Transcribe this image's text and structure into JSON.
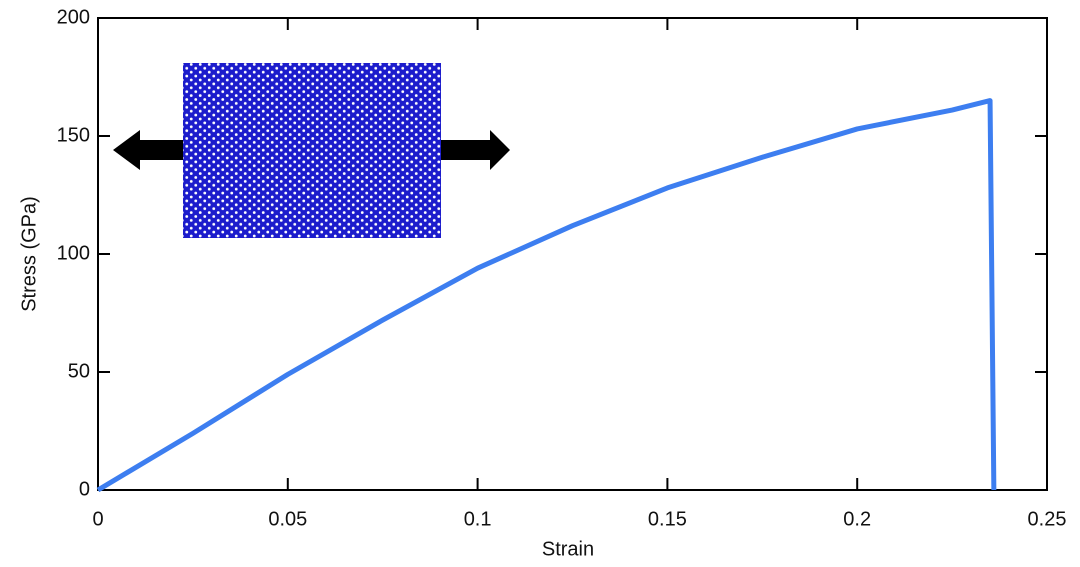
{
  "chart_data": {
    "type": "line",
    "x_label": "Strain",
    "y_label": "Stress (GPa)",
    "x": [
      0,
      0.025,
      0.05,
      0.075,
      0.1,
      0.125,
      0.15,
      0.175,
      0.2,
      0.225,
      0.235,
      0.236
    ],
    "series": [
      {
        "color": "#3d7ef0",
        "values": [
          0,
          24,
          49,
          72,
          94,
          112,
          128,
          141,
          153,
          161,
          165,
          0
        ]
      }
    ],
    "xlim": [
      0,
      0.25
    ],
    "xticks": [
      0,
      0.05,
      0.1,
      0.15,
      0.2,
      0.25
    ],
    "ylim": [
      0,
      200
    ],
    "yticks": [
      0,
      50,
      100,
      150,
      200
    ]
  }
}
